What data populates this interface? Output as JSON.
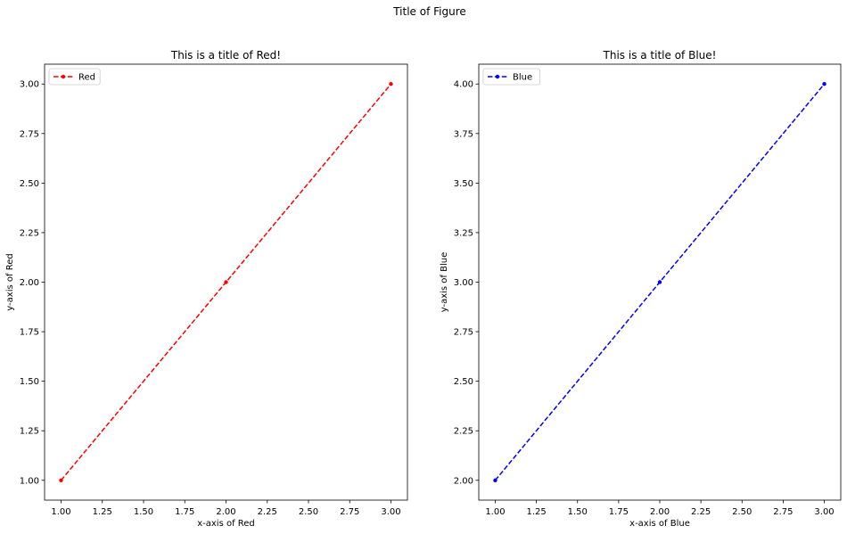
{
  "figure": {
    "title": "Title of Figure"
  },
  "chart_data": [
    {
      "type": "line",
      "title": "This is a title of Red!",
      "xlabel": "x-axis of Red",
      "ylabel": "y-axis of Red",
      "xlim": [
        0.9,
        3.1
      ],
      "ylim": [
        0.9,
        3.1
      ],
      "xticks": [
        "1.00",
        "1.25",
        "1.50",
        "1.75",
        "2.00",
        "2.25",
        "2.50",
        "2.75",
        "3.00"
      ],
      "yticks": [
        "1.00",
        "1.25",
        "1.50",
        "1.75",
        "2.00",
        "2.25",
        "2.50",
        "2.75",
        "3.00"
      ],
      "grid": false,
      "legend_position": "top-left",
      "series": [
        {
          "name": "Red",
          "color": "#ff0000",
          "line_style": "dashed",
          "marker": "circle",
          "x": [
            1,
            2,
            3
          ],
          "y": [
            1,
            2,
            3
          ]
        }
      ]
    },
    {
      "type": "line",
      "title": "This is a title of Blue!",
      "xlabel": "x-axis of Blue",
      "ylabel": "y-axis of Blue",
      "xlim": [
        0.9,
        3.1
      ],
      "ylim": [
        1.9,
        4.1
      ],
      "xticks": [
        "1.00",
        "1.25",
        "1.50",
        "1.75",
        "2.00",
        "2.25",
        "2.50",
        "2.75",
        "3.00"
      ],
      "yticks": [
        "2.00",
        "2.25",
        "2.50",
        "2.75",
        "3.00",
        "3.25",
        "3.50",
        "3.75",
        "4.00"
      ],
      "grid": false,
      "legend_position": "top-left",
      "series": [
        {
          "name": "Blue",
          "color": "#0000ff",
          "line_style": "dashed",
          "marker": "circle",
          "x": [
            1,
            2,
            3
          ],
          "y": [
            2,
            3,
            4
          ]
        }
      ]
    }
  ]
}
